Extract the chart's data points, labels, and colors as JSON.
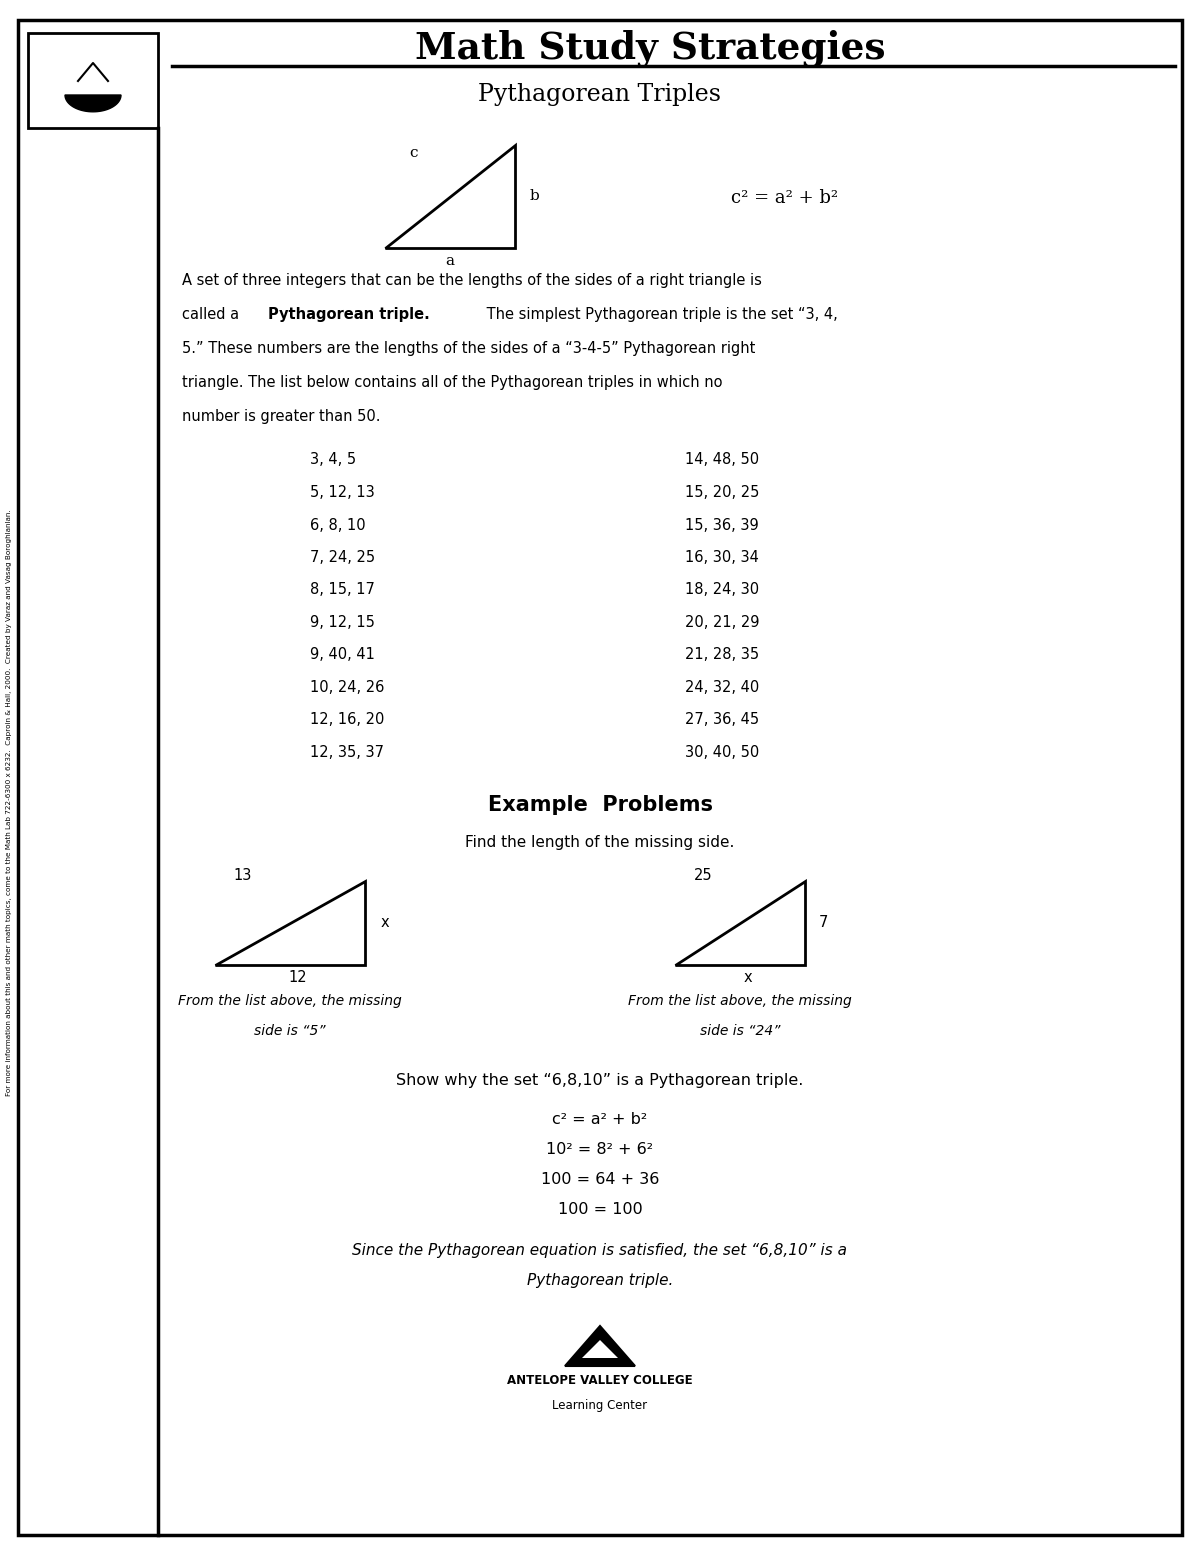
{
  "title": "Math Study Strategies",
  "subtitle": "Pythagorean Triples",
  "bg_color": "#ffffff",
  "border_color": "#000000",
  "triples_left": [
    "3, 4, 5",
    "5, 12, 13",
    "6, 8, 10",
    "7, 24, 25",
    "8, 15, 17",
    "9, 12, 15",
    "9, 40, 41",
    "10, 24, 26",
    "12, 16, 20",
    "12, 35, 37"
  ],
  "triples_right": [
    "14, 48, 50",
    "15, 20, 25",
    "15, 36, 39",
    "16, 30, 34",
    "18, 24, 30",
    "20, 21, 29",
    "21, 28, 35",
    "24, 32, 40",
    "27, 36, 45",
    "30, 40, 50"
  ],
  "intro_text_line1": "A set of three integers that can be the lengths of the sides of a right triangle is",
  "intro_text_line3": "5.” These numbers are the lengths of the sides of a “3-4-5” Pythagorean right",
  "intro_text_line4": "triangle. The list below contains all of the Pythagorean triples in which no",
  "intro_text_line5": "number is greater than 50.",
  "example_title": "Example  Problems",
  "example_subtitle": "Find the length of the missing side.",
  "example1_caption_line1": "From the list above, the missing",
  "example1_caption_line2": "side is “5”",
  "example2_caption_line1": "From the list above, the missing",
  "example2_caption_line2": "side is “24”",
  "show_why_text": "Show why the set “6,8,10” is a Pythagorean triple.",
  "equation_lines": [
    "c² = a² + b²",
    "10² = 8² + 6²",
    "100 = 64 + 36",
    "100 = 100"
  ],
  "final_italic_line1": "Since the Pythagorean equation is satisfied, the set “6,8,10” is a",
  "final_italic_line2": "Pythagorean triple.",
  "footer_text": "ANTELOPE VALLEY COLLEGE",
  "footer_subtext": "Learning Center",
  "side_text": "For more information about this and other math topics, come to the Math Lab 722-6300 x 6232.  Caproin & Hall, 2000.  Created by Varaz and Vasag Boroghlanlan.",
  "theorem_label": "c² = a² + b²",
  "intro_bold": "Pythagorean triple.",
  "intro_after_bold": " The simplest Pythagorean triple is the set “3, 4,"
}
